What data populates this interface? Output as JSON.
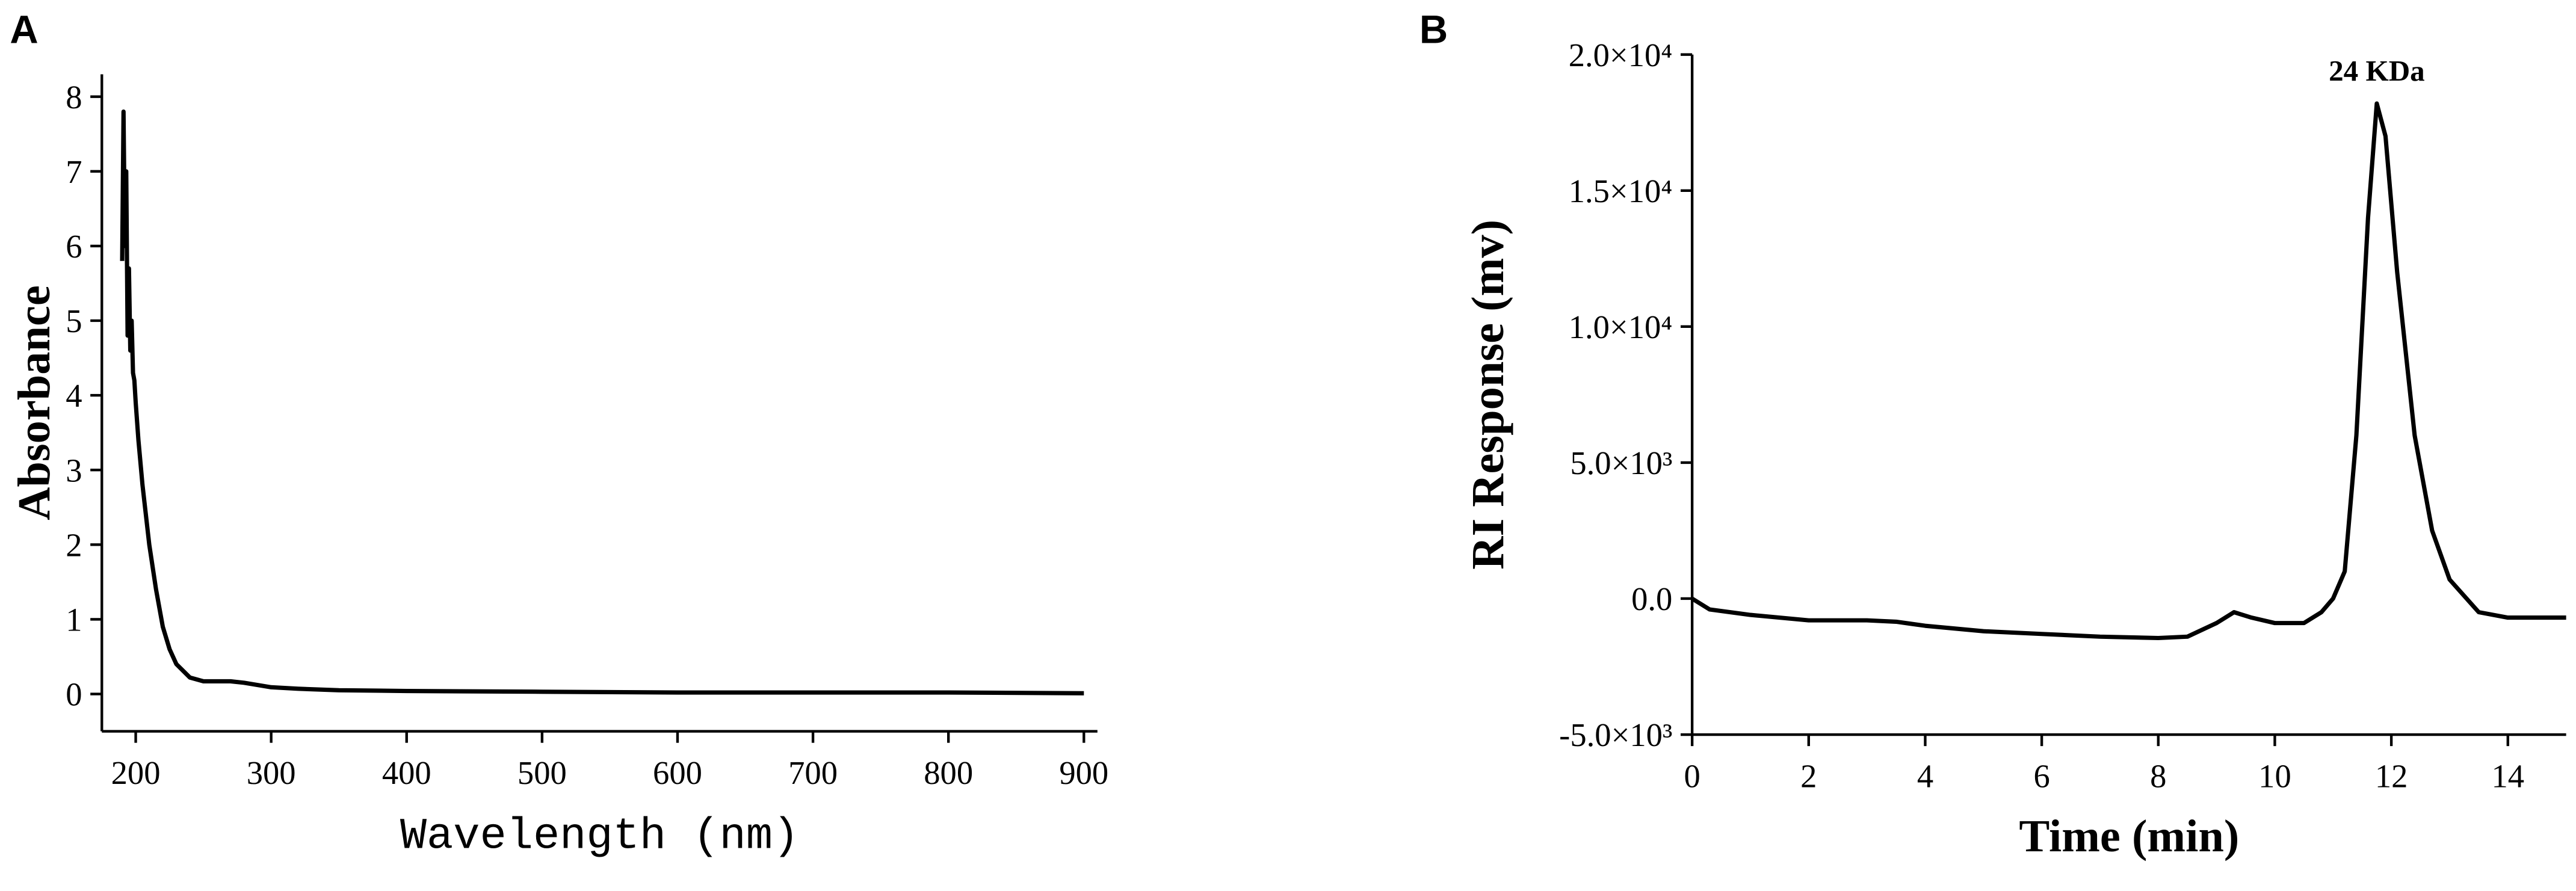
{
  "chart_data": [
    {
      "type": "line",
      "panel_label": "A",
      "x_label": "Wavelength (nm)",
      "y_label": "Absorbance",
      "color": "#000000",
      "x": [
        190,
        191,
        192,
        193,
        194,
        195,
        196,
        197,
        198,
        199,
        200,
        202,
        205,
        210,
        215,
        220,
        225,
        230,
        240,
        250,
        260,
        270,
        280,
        300,
        320,
        350,
        400,
        500,
        600,
        700,
        800,
        900
      ],
      "values": [
        5.8,
        7.8,
        6.0,
        7.0,
        4.8,
        5.7,
        4.6,
        5.0,
        4.3,
        4.2,
        3.9,
        3.4,
        2.8,
        2.0,
        1.4,
        0.9,
        0.6,
        0.4,
        0.22,
        0.17,
        0.17,
        0.17,
        0.15,
        0.09,
        0.07,
        0.05,
        0.04,
        0.03,
        0.02,
        0.02,
        0.02,
        0.01
      ],
      "xlim": [
        175,
        910
      ],
      "ylim": [
        -0.5,
        8.3
      ],
      "xticks": [
        200,
        300,
        400,
        500,
        600,
        700,
        800,
        900
      ],
      "yticks": [
        0,
        1,
        2,
        3,
        4,
        5,
        6,
        7,
        8
      ]
    },
    {
      "type": "line",
      "panel_label": "B",
      "x_label": "Time (min)",
      "y_label": "RI Response (mv)",
      "color": "#000000",
      "annotations": [
        "24 KDa"
      ],
      "x": [
        0,
        0.3,
        1,
        2,
        3,
        3.5,
        4,
        5,
        6,
        7,
        8,
        8.5,
        9,
        9.3,
        9.6,
        10,
        10.5,
        10.8,
        11,
        11.2,
        11.4,
        11.6,
        11.75,
        11.9,
        12.1,
        12.4,
        12.7,
        13,
        13.5,
        14,
        15
      ],
      "values": [
        0,
        -400,
        -600,
        -800,
        -800,
        -850,
        -1000,
        -1200,
        -1300,
        -1400,
        -1450,
        -1400,
        -900,
        -500,
        -700,
        -900,
        -900,
        -500,
        0,
        1000,
        6000,
        14000,
        18200,
        17000,
        12000,
        6000,
        2500,
        700,
        -500,
        -700,
        -700
      ],
      "xlim": [
        0,
        15
      ],
      "ylim": [
        -5000,
        20000
      ],
      "xticks": [
        0,
        2,
        4,
        6,
        8,
        10,
        12,
        14
      ],
      "yticks": [
        {
          "value": -5000,
          "label": "-5.0×10³"
        },
        {
          "value": 0,
          "label": "0.0"
        },
        {
          "value": 5000,
          "label": "5.0×10³"
        },
        {
          "value": 10000,
          "label": "1.0×10⁴"
        },
        {
          "value": 15000,
          "label": "1.5×10⁴"
        },
        {
          "value": 20000,
          "label": "2.0×10⁴"
        }
      ]
    }
  ]
}
